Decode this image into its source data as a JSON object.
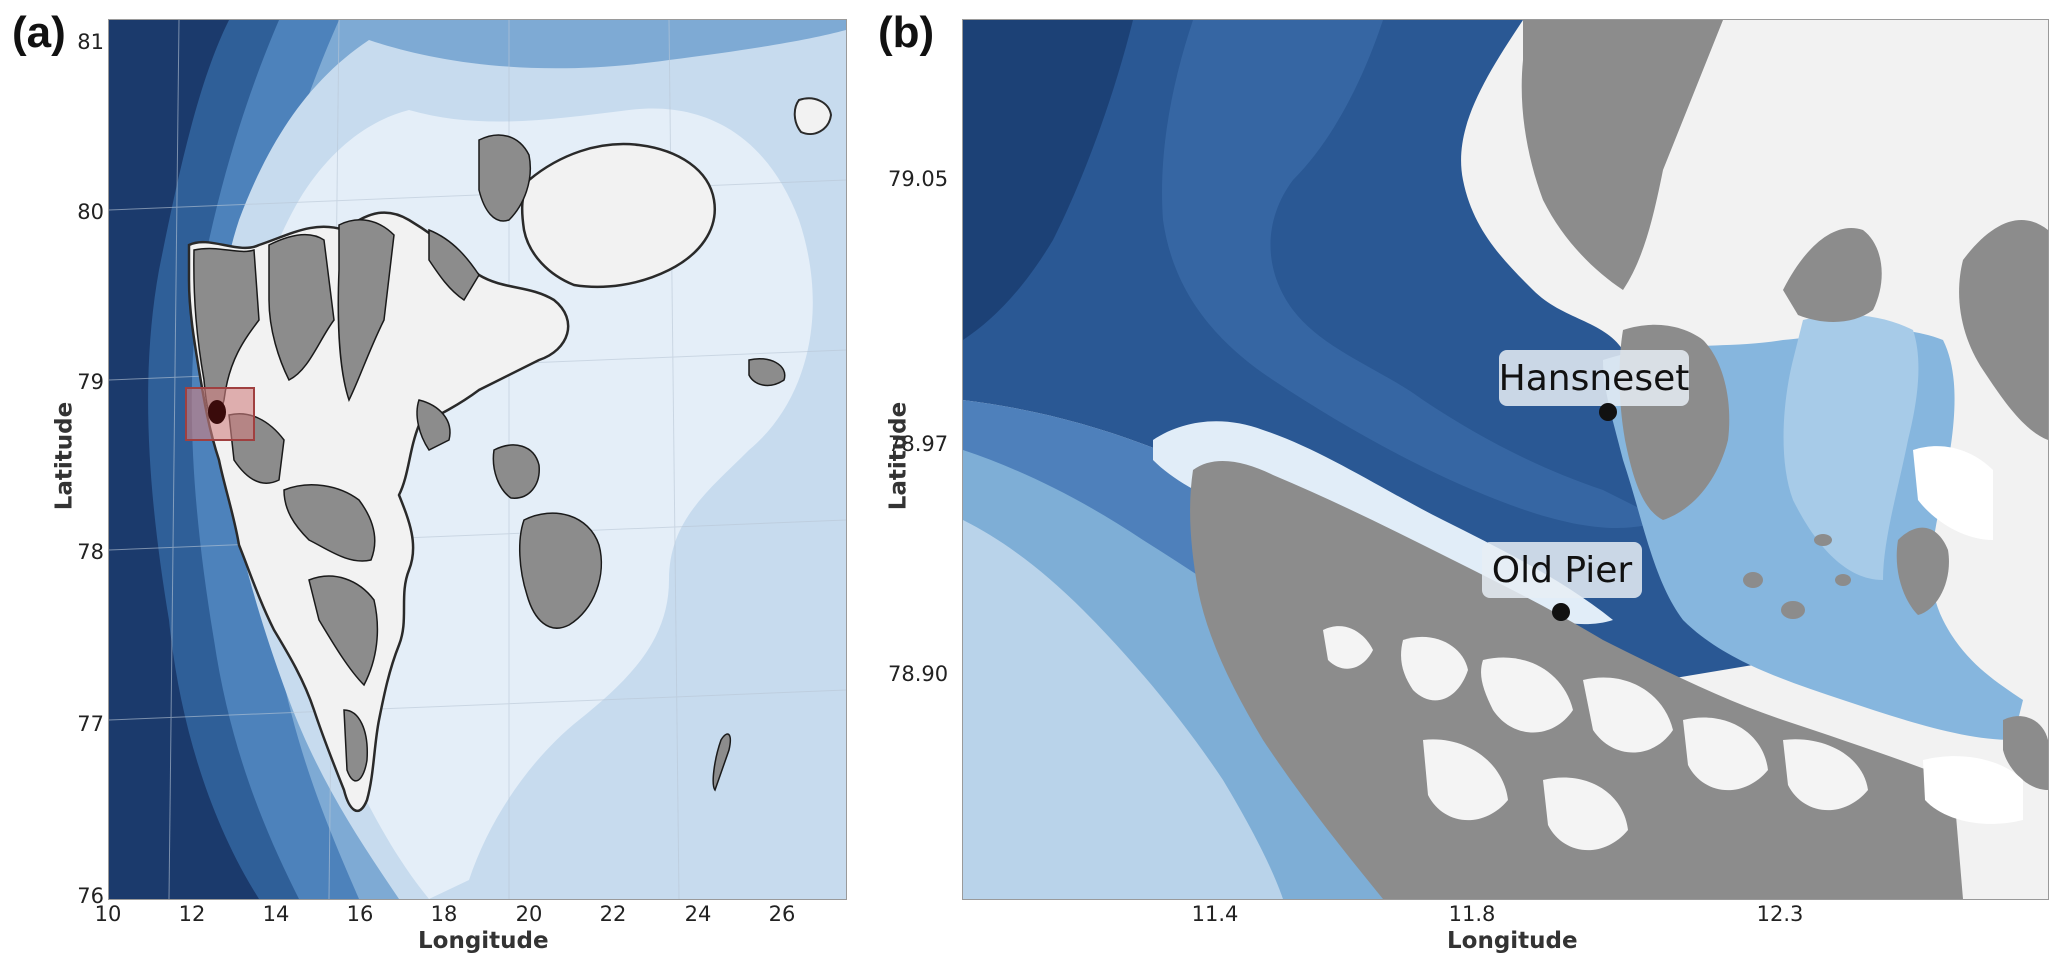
{
  "panel_a": {
    "label": "(a)",
    "xlabel": "Longitude",
    "ylabel": "Latitude",
    "x_ticks": [
      "10",
      "12",
      "14",
      "16",
      "18",
      "20",
      "22",
      "24",
      "26"
    ],
    "y_ticks": [
      "81",
      "80",
      "79",
      "78",
      "77",
      "76"
    ],
    "colors": {
      "ocean_deep": "#16305e",
      "ocean_mid": "#3c6ea5",
      "ocean_shelf": "#dce9f5",
      "land": "#8c8c8c",
      "ice": "#f2f2f2",
      "highlight": "#d08080"
    }
  },
  "panel_b": {
    "label": "(b)",
    "xlabel": "Longitude",
    "ylabel": "Latitude",
    "x_ticks": [
      "11.4",
      "11.8",
      "12.3"
    ],
    "y_ticks": [
      "79.05",
      "78.97",
      "78.90"
    ],
    "sites": [
      {
        "name": "Hansneset",
        "lon": 11.98,
        "lat": 78.992
      },
      {
        "name": "Old Pier",
        "lon": 11.93,
        "lat": 78.931
      }
    ],
    "colors": {
      "ocean_deep": "#1d4d85",
      "ocean_mid": "#3a6ca6",
      "ocean_shallow": "#7fb0d9",
      "land": "#8c8c8c",
      "glacier": "#f4f4f4"
    }
  }
}
